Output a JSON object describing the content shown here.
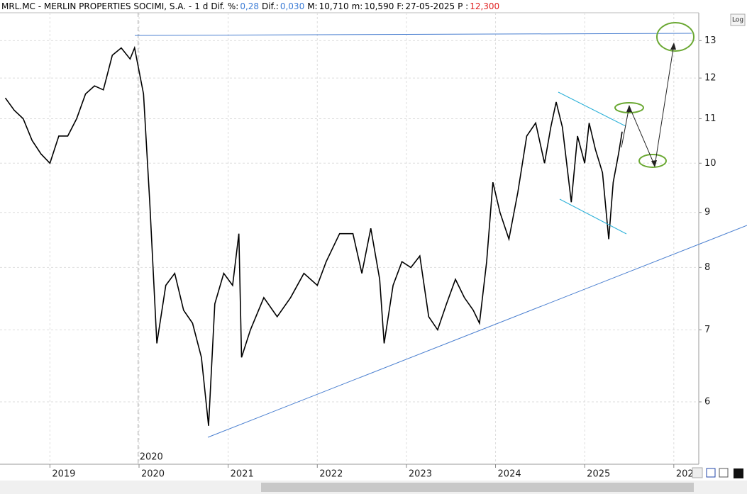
{
  "header": {
    "symbol": "MRL.MC - MERLIN PROPERTIES SOCIMI, S.A. -",
    "period": "1 d",
    "fields": [
      {
        "label": "Dif. %:",
        "value": "0,28",
        "color": "#3a7bd5"
      },
      {
        "label": "Dif.:",
        "value": "0,030",
        "color": "#3a7bd5"
      },
      {
        "label": "M:",
        "value": "10,710",
        "color": "#000000"
      },
      {
        "label": "m:",
        "value": "10,590",
        "color": "#000000"
      },
      {
        "label": "F:",
        "value": "27-05-2025",
        "color": "#000000"
      },
      {
        "label": "P :",
        "value": "12,300",
        "color": "#e02020"
      }
    ]
  },
  "log_button": "Log",
  "chart_data": {
    "type": "line",
    "color": "#000000",
    "log_scale": true,
    "grid": true,
    "x": [
      2018.5,
      2018.6,
      2018.7,
      2018.8,
      2018.9,
      2019.0,
      2019.1,
      2019.2,
      2019.3,
      2019.4,
      2019.5,
      2019.6,
      2019.7,
      2019.8,
      2019.9,
      2019.95,
      2020.05,
      2020.12,
      2020.2,
      2020.3,
      2020.4,
      2020.5,
      2020.6,
      2020.7,
      2020.78,
      2020.85,
      2020.95,
      2021.05,
      2021.12,
      2021.15,
      2021.25,
      2021.4,
      2021.55,
      2021.7,
      2021.85,
      2022.0,
      2022.1,
      2022.25,
      2022.4,
      2022.5,
      2022.6,
      2022.7,
      2022.75,
      2022.85,
      2022.95,
      2023.05,
      2023.15,
      2023.25,
      2023.35,
      2023.45,
      2023.55,
      2023.65,
      2023.75,
      2023.82,
      2023.9,
      2023.97,
      2024.05,
      2024.15,
      2024.25,
      2024.35,
      2024.45,
      2024.55,
      2024.62,
      2024.68,
      2024.75,
      2024.85,
      2024.92,
      2025.0,
      2025.05,
      2025.12,
      2025.2,
      2025.27,
      2025.32,
      2025.38,
      2025.42
    ],
    "values": [
      11.5,
      11.2,
      11.0,
      10.5,
      10.2,
      10.0,
      10.6,
      10.6,
      11.0,
      11.6,
      11.8,
      11.7,
      12.6,
      12.8,
      12.5,
      12.8,
      11.6,
      9.2,
      6.8,
      7.7,
      7.9,
      7.3,
      7.1,
      6.6,
      5.7,
      7.4,
      7.9,
      7.7,
      8.6,
      6.6,
      7.0,
      7.5,
      7.2,
      7.5,
      7.9,
      7.7,
      8.1,
      8.6,
      8.6,
      7.9,
      8.7,
      7.8,
      6.8,
      7.7,
      8.1,
      8.0,
      8.2,
      7.2,
      7.0,
      7.4,
      7.8,
      7.5,
      7.3,
      7.1,
      8.1,
      9.6,
      9.0,
      8.5,
      9.4,
      10.6,
      10.9,
      10.0,
      10.8,
      11.4,
      10.8,
      9.2,
      10.6,
      10.0,
      10.9,
      10.3,
      9.8,
      8.5,
      9.6,
      10.2,
      10.7
    ],
    "xlim": [
      2018.44,
      2026.28
    ],
    "ylim": [
      5.25,
      13.8
    ],
    "xticks": [
      2019,
      2020,
      2021,
      2022,
      2023,
      2024,
      2025,
      {
        "value": 2026,
        "label": "202"
      }
    ],
    "yticks": [
      6,
      7,
      8,
      9,
      10,
      11,
      12,
      13
    ],
    "cursor": {
      "x": 2019.99,
      "label": "2020"
    }
  }
}
